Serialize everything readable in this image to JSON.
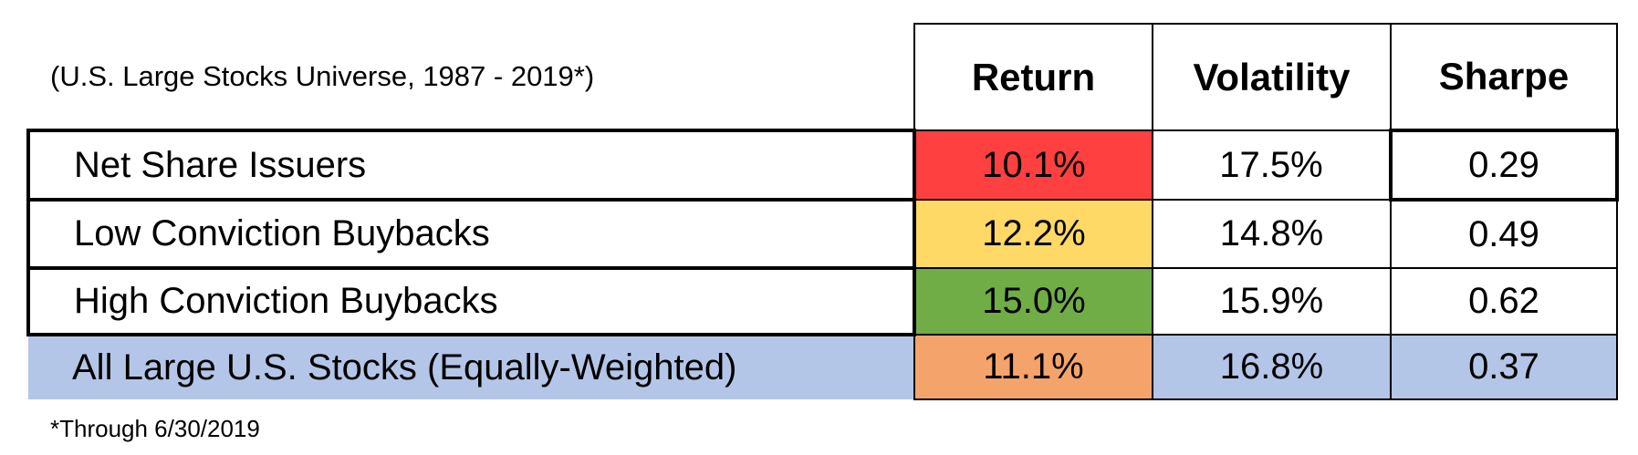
{
  "table": {
    "caption": "(U.S. Large Stocks Universe, 1987 - 2019*)",
    "headers": [
      "Return",
      "Volatility",
      "Sharpe"
    ],
    "rows": [
      [
        "Net Share Issuers",
        "10.1%",
        "17.5%",
        "0.29"
      ],
      [
        "Low Conviction Buybacks",
        "12.2%",
        "14.8%",
        "0.49"
      ],
      [
        "High Conviction Buybacks",
        "15.0%",
        "15.9%",
        "0.62"
      ],
      [
        "All Large U.S. Stocks (Equally-Weighted)",
        "11.1%",
        "16.8%",
        "0.37"
      ]
    ]
  },
  "footnote": "*Through 6/30/2019"
}
